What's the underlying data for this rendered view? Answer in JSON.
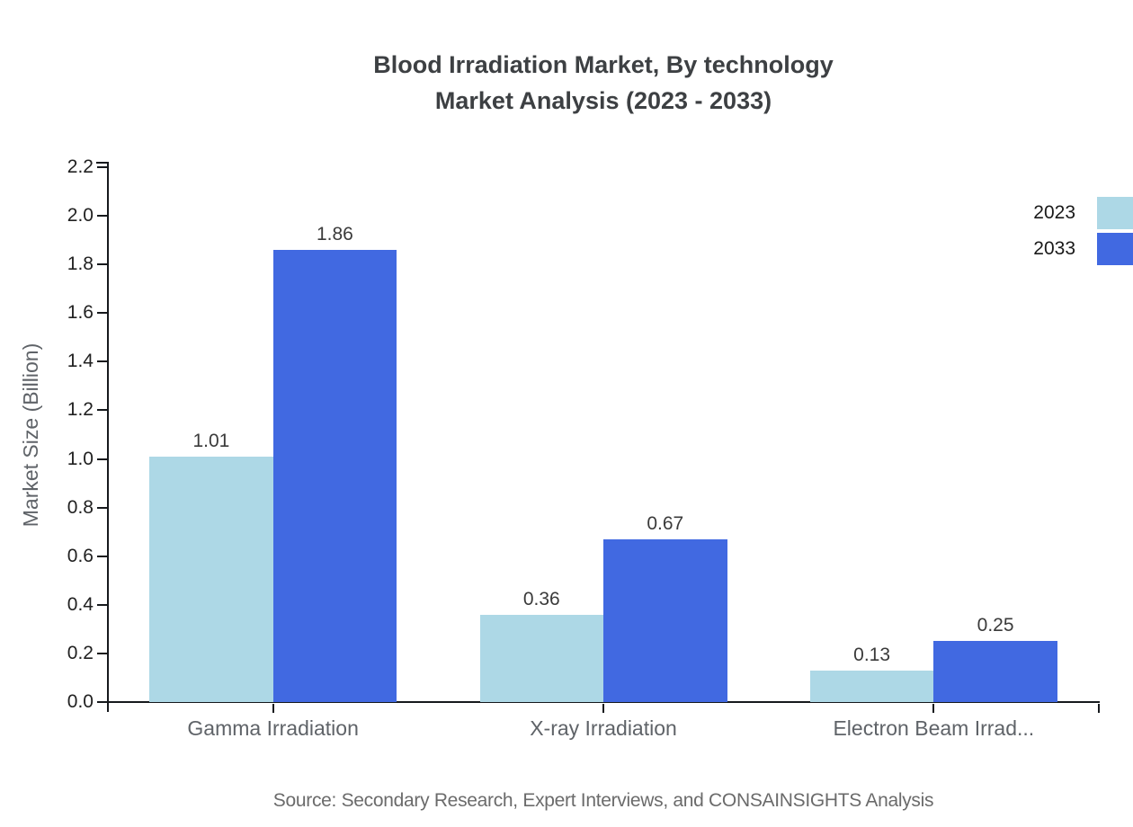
{
  "title": {
    "line1": "Blood Irradiation Market, By technology",
    "line2": "Market Analysis (2023 - 2033)"
  },
  "legend": {
    "items": [
      {
        "label": "2023",
        "color": "#ADD8E6"
      },
      {
        "label": "2033",
        "color": "#4169E1"
      }
    ]
  },
  "source_text": "Source: Secondary Research, Expert Interviews, and CONSAINSIGHTS Analysis",
  "colors": {
    "series_2023": "#ADD8E6",
    "series_2033": "#4169E1",
    "axis": "#16191d",
    "title_text": "#3d4043",
    "muted_text": "#5f6368"
  },
  "chart_data": {
    "type": "bar",
    "title": "Blood Irradiation Market, By technology Market Analysis (2023 - 2033)",
    "categories": [
      "Gamma Irradiation",
      "X-ray Irradiation",
      "Electron Beam Irrad..."
    ],
    "series": [
      {
        "name": "2023",
        "color": "#ADD8E6",
        "values": [
          1.01,
          0.36,
          0.13
        ]
      },
      {
        "name": "2033",
        "color": "#4169E1",
        "values": [
          1.86,
          0.67,
          0.25
        ]
      }
    ],
    "xlabel": "",
    "ylabel": "Market Size (Billion)",
    "ylim": [
      0,
      2.2
    ],
    "ytick_step": 0.2,
    "grid": false,
    "legend_position": "top-right",
    "bar_value_labels": true
  }
}
